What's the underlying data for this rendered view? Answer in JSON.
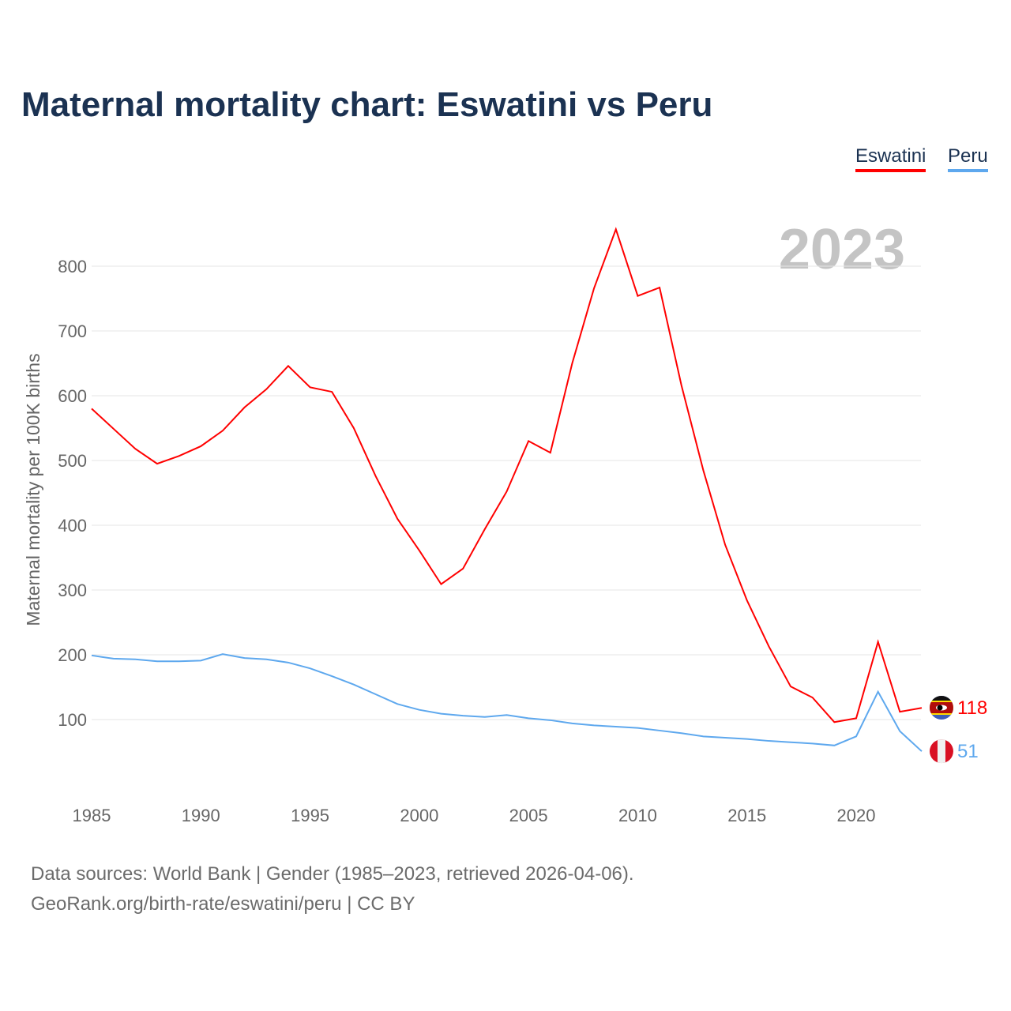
{
  "title": "Maternal mortality chart: Eswatini vs Peru",
  "legend": [
    {
      "name": "Eswatini",
      "color": "#ff0000"
    },
    {
      "name": "Peru",
      "color": "#5ea8ee"
    }
  ],
  "year_label": "2023",
  "source_line1": "Data sources: World Bank | Gender (1985–2023, retrieved 2026-04-06).",
  "source_line2": "GeoRank.org/birth-rate/eswatini/peru | CC BY",
  "chart_data": {
    "type": "line",
    "title": "Maternal mortality chart: Eswatini vs Peru",
    "xlabel": "",
    "ylabel": "Maternal mortality per 100K births",
    "x": [
      1985,
      1986,
      1987,
      1988,
      1989,
      1990,
      1991,
      1992,
      1993,
      1994,
      1995,
      1996,
      1997,
      1998,
      1999,
      2000,
      2001,
      2002,
      2003,
      2004,
      2005,
      2006,
      2007,
      2008,
      2009,
      2010,
      2011,
      2012,
      2013,
      2014,
      2015,
      2016,
      2017,
      2018,
      2019,
      2020,
      2021,
      2022,
      2023
    ],
    "xticks": [
      1985,
      1990,
      1995,
      2000,
      2005,
      2010,
      2015,
      2020
    ],
    "yticks": [
      100,
      200,
      300,
      400,
      500,
      600,
      700,
      800
    ],
    "xlim": [
      1985,
      2023
    ],
    "ylim": [
      0,
      850
    ],
    "grid": true,
    "legend_position": "top-right",
    "series": [
      {
        "name": "Eswatini",
        "color": "#ff0000",
        "end_label": "118",
        "values": [
          580,
          549,
          518,
          495,
          507,
          522,
          546,
          582,
          610,
          646,
          613,
          606,
          550,
          476,
          410,
          361,
          309,
          333,
          394,
          452,
          530,
          512,
          650,
          766,
          857,
          754,
          767,
          616,
          485,
          370,
          284,
          213,
          151,
          134,
          96,
          102,
          220,
          112,
          118
        ]
      },
      {
        "name": "Peru",
        "color": "#5ea8ee",
        "end_label": "51",
        "values": [
          199,
          194,
          193,
          190,
          190,
          191,
          201,
          195,
          193,
          188,
          179,
          167,
          154,
          139,
          124,
          115,
          109,
          106,
          104,
          107,
          102,
          99,
          94,
          91,
          89,
          87,
          83,
          79,
          74,
          72,
          70,
          67,
          65,
          63,
          60,
          74,
          143,
          82,
          51
        ]
      }
    ]
  }
}
